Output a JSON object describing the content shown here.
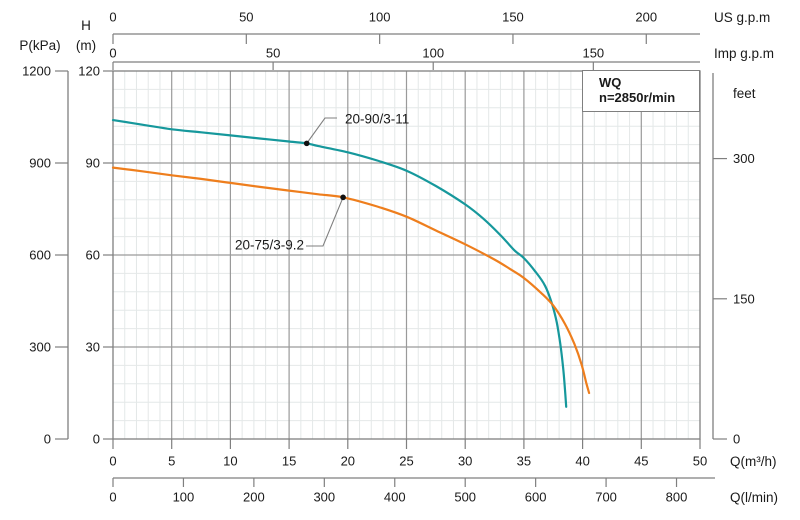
{
  "chart_data": {
    "type": "line",
    "title_box": {
      "model_series": "WQ",
      "speed": "n=2850r/min"
    },
    "axes": {
      "bottom_primary": {
        "label": "Q(m³/h)",
        "ticks": [
          0,
          5,
          10,
          15,
          20,
          25,
          30,
          35,
          40,
          45,
          50
        ],
        "range": [
          0,
          50
        ]
      },
      "bottom_secondary": {
        "label": "Q(l/min)",
        "ticks": [
          0,
          100,
          200,
          300,
          400,
          500,
          600,
          700,
          800
        ],
        "m3h_per_unit": 0.06
      },
      "top_primary": {
        "label": "US g.p.m",
        "ticks": [
          0,
          50,
          100,
          150,
          200
        ],
        "m3h_per_unit": 0.22712
      },
      "top_secondary": {
        "label": "Imp g.p.m",
        "ticks": [
          0,
          50,
          100,
          150
        ],
        "m3h_per_unit": 0.27276
      },
      "left_primary": {
        "label_line1": "H",
        "label_line2": "(m)",
        "ticks": [
          0,
          30,
          60,
          90,
          120
        ],
        "range": [
          0,
          120
        ]
      },
      "left_secondary": {
        "label": "P(kPa)",
        "ticks": [
          0,
          300,
          600,
          900,
          1200
        ],
        "m_per_unit": 0.1
      },
      "right": {
        "label": "feet",
        "ticks": [
          0,
          150,
          300
        ],
        "m_per_unit": 0.3048
      }
    },
    "grid": {
      "x_minor_step": 1,
      "x_major_step": 5,
      "y_minor_step": 6,
      "y_major_step": 30
    },
    "series": [
      {
        "name": "20-90/3-11",
        "color": "#16989c",
        "marker_point": [
          16.5,
          96.4
        ],
        "points": [
          [
            0,
            104
          ],
          [
            2.5,
            102.5
          ],
          [
            5,
            101
          ],
          [
            7.5,
            100
          ],
          [
            10,
            99
          ],
          [
            12.5,
            98
          ],
          [
            15,
            97
          ],
          [
            16.5,
            96.4
          ],
          [
            17.5,
            95.5
          ],
          [
            20,
            93.5
          ],
          [
            22.5,
            90.8
          ],
          [
            25,
            87.5
          ],
          [
            27.5,
            82.5
          ],
          [
            30,
            76.5
          ],
          [
            31.5,
            72
          ],
          [
            33,
            66.5
          ],
          [
            34.2,
            61.5
          ],
          [
            35,
            59
          ],
          [
            36,
            54.5
          ],
          [
            36.8,
            50
          ],
          [
            37.4,
            44
          ],
          [
            37.8,
            38
          ],
          [
            38.1,
            31
          ],
          [
            38.35,
            23
          ],
          [
            38.5,
            16
          ],
          [
            38.6,
            10.5
          ]
        ]
      },
      {
        "name": "20-75/3-9.2",
        "color": "#ee7e1d",
        "marker_point": [
          19.6,
          78.8
        ],
        "points": [
          [
            0,
            88.5
          ],
          [
            2.5,
            87.3
          ],
          [
            5,
            86
          ],
          [
            7.5,
            84.8
          ],
          [
            10,
            83.5
          ],
          [
            12.5,
            82.2
          ],
          [
            15,
            81
          ],
          [
            17.5,
            79.8
          ],
          [
            19.6,
            78.8
          ],
          [
            22.5,
            75.8
          ],
          [
            25,
            72.5
          ],
          [
            27.5,
            68
          ],
          [
            30,
            63.5
          ],
          [
            32.5,
            58.5
          ],
          [
            34,
            55
          ],
          [
            35,
            52.5
          ],
          [
            36.5,
            47.5
          ],
          [
            37.5,
            43.5
          ],
          [
            38.5,
            37.5
          ],
          [
            39.3,
            31
          ],
          [
            39.9,
            24.5
          ],
          [
            40.3,
            18.5
          ],
          [
            40.55,
            15
          ]
        ]
      }
    ]
  },
  "colors": {
    "background": "#ffffff",
    "minor_grid": "#e4e8e8",
    "major_grid": "#9a9a9a",
    "axis": "#7f7f7f",
    "text": "#1a1a1a",
    "leader": "#7f7f7f",
    "marker": "#111111"
  }
}
